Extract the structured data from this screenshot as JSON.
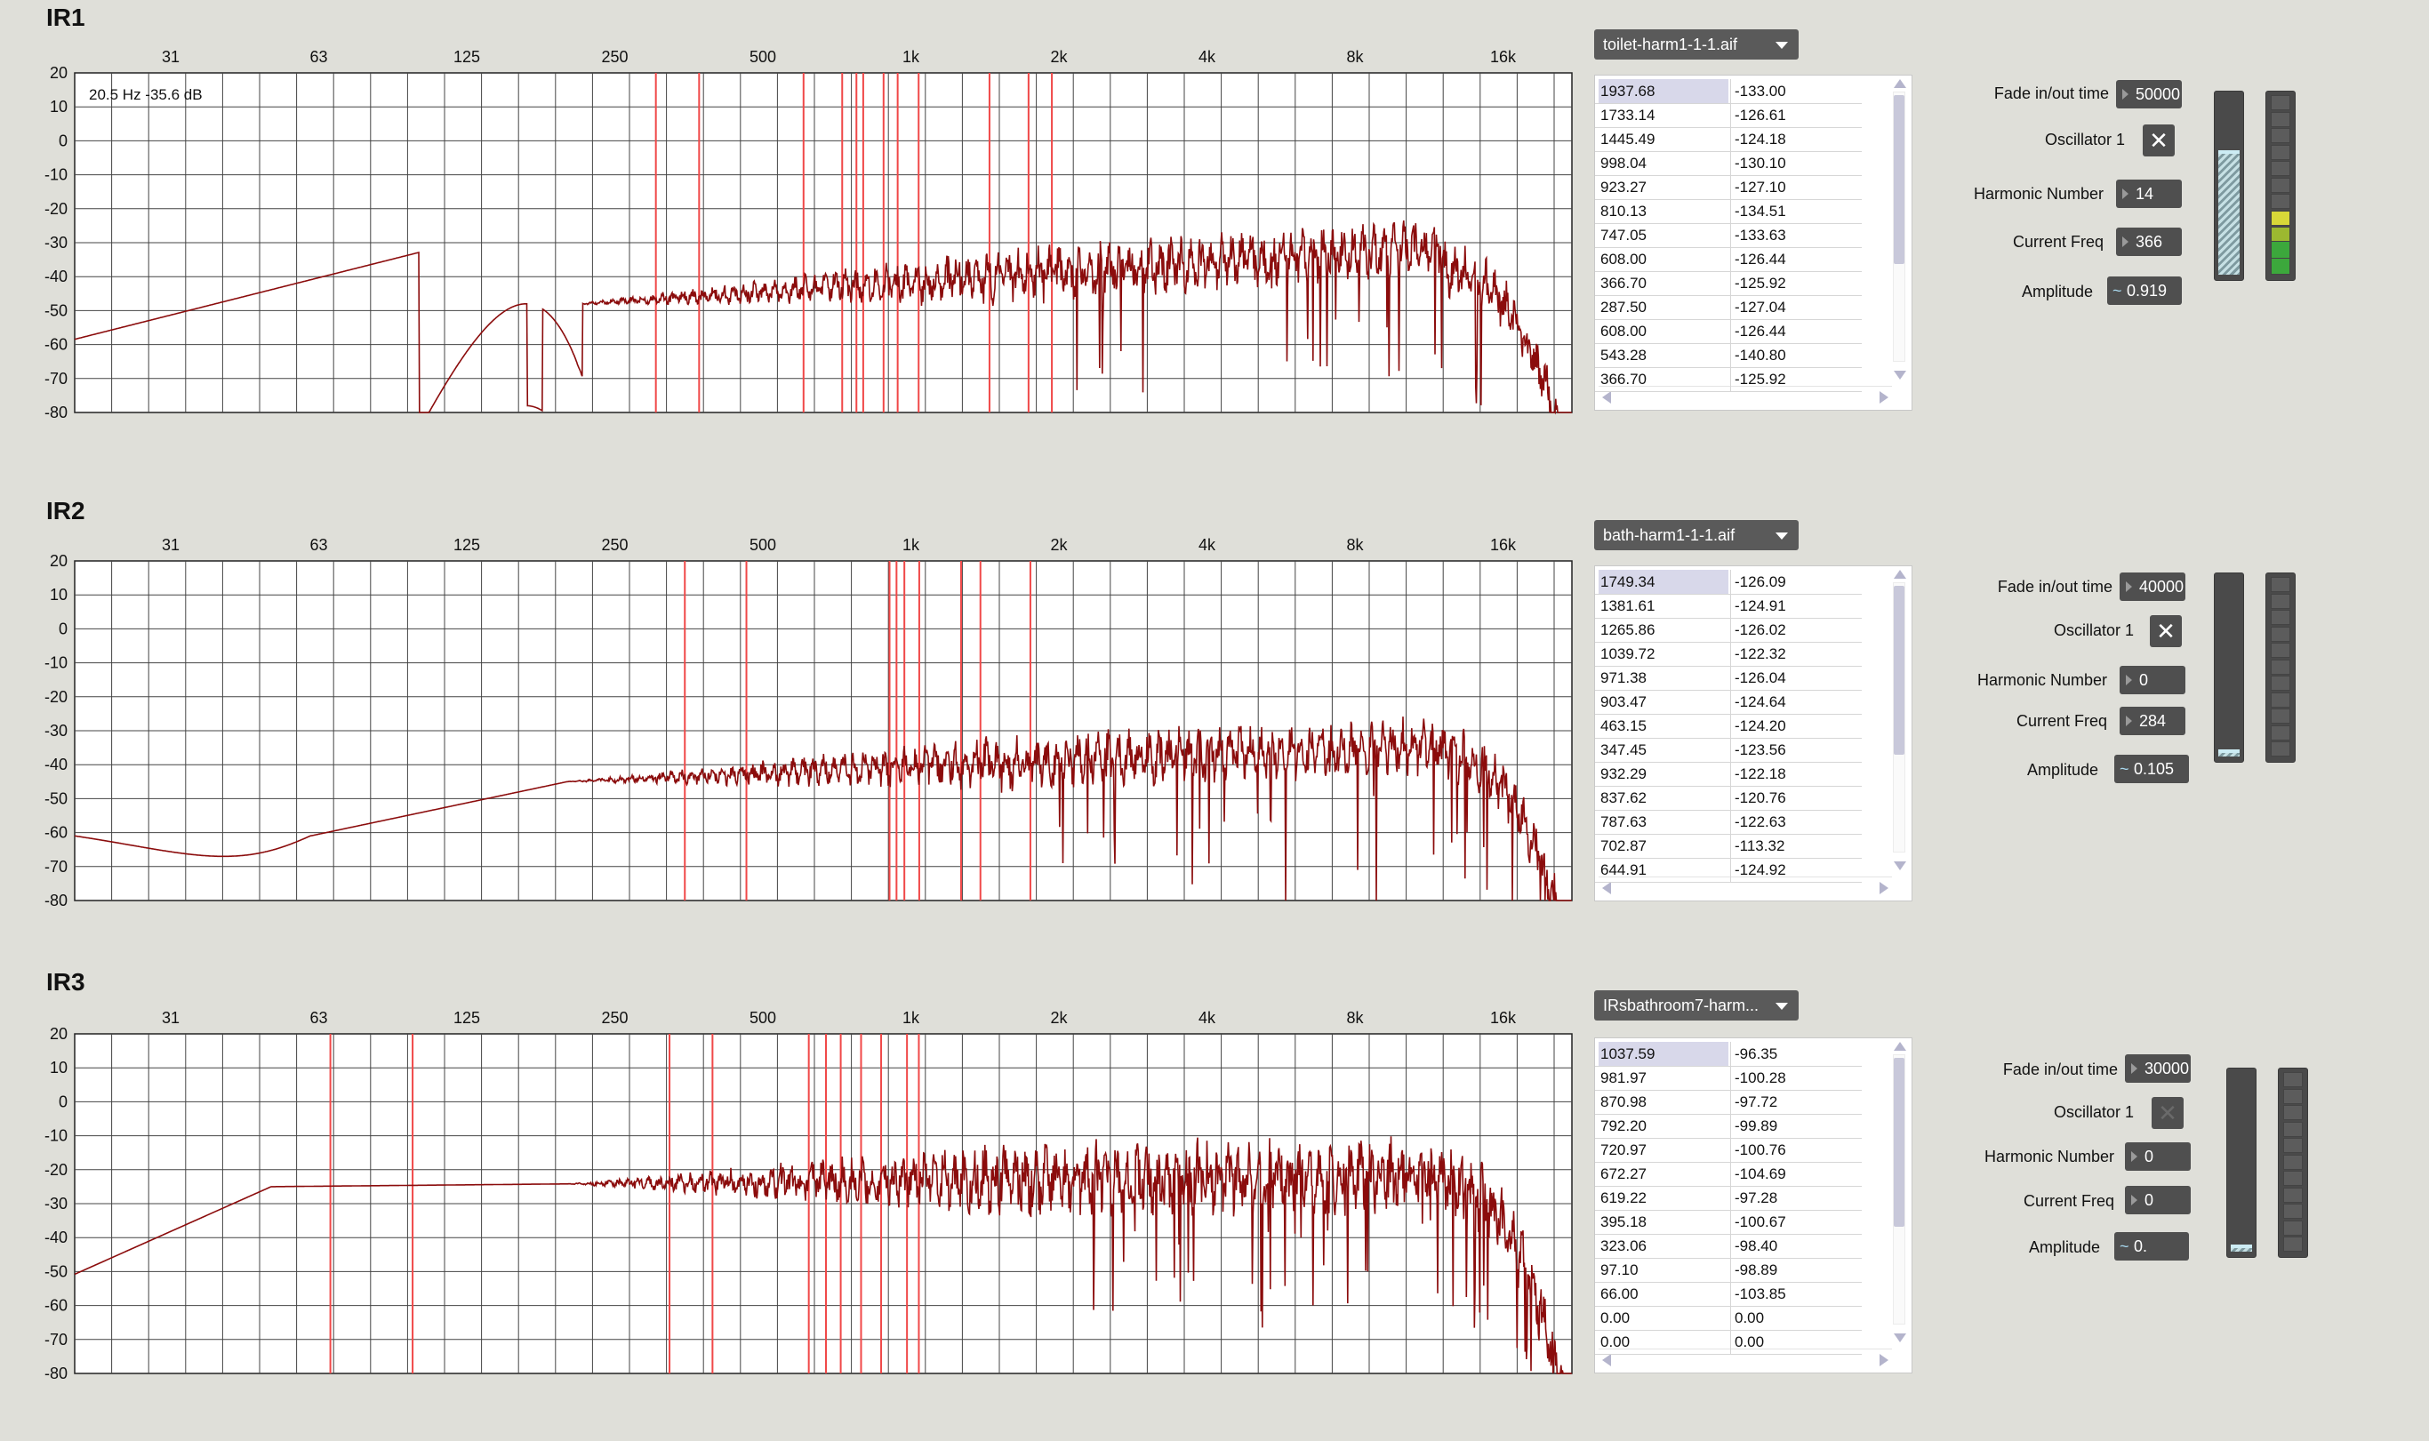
{
  "axes": {
    "freq_labels": [
      "31",
      "63",
      "125",
      "250",
      "500",
      "1k",
      "2k",
      "4k",
      "8k",
      "16k"
    ],
    "db_labels": [
      "20",
      "10",
      "0",
      "-10",
      "-20",
      "-30",
      "-40",
      "-50",
      "-60",
      "-70",
      "-80"
    ]
  },
  "colors": {
    "trace": "#8b0c0c",
    "marker": "#f04848",
    "grid": "#333333"
  },
  "panels": [
    {
      "title": "IR1",
      "readout": "20.5 Hz -35.6 dB",
      "file": "toilet-harm1-1-1.aif",
      "markers_hz": [
        303,
        371,
        605,
        725,
        775,
        800,
        880,
        940,
        1037,
        1445,
        1735,
        1935
      ],
      "list": [
        [
          "1937.68",
          "-133.00"
        ],
        [
          "1733.14",
          "-126.61"
        ],
        [
          "1445.49",
          "-124.18"
        ],
        [
          "998.04",
          "-130.10"
        ],
        [
          "923.27",
          "-127.10"
        ],
        [
          "810.13",
          "-134.51"
        ],
        [
          "747.05",
          "-133.63"
        ],
        [
          "608.00",
          "-126.44"
        ],
        [
          "366.70",
          "-125.92"
        ],
        [
          "287.50",
          "-127.04"
        ],
        [
          "608.00",
          "-126.44"
        ],
        [
          "543.28",
          "-140.80"
        ],
        [
          "366.70",
          "-125.92"
        ]
      ],
      "fade_label": "Fade in/out time",
      "fade_value": "50000",
      "osc_label": "Oscillator 1",
      "osc_on": true,
      "harm_label": "Harmonic Number",
      "harm_value": "14",
      "freq_label": "Current Freq",
      "freq_value": "366",
      "amp_label": "Amplitude",
      "amp_value": "0.919",
      "slider_level": 0.68,
      "meter_lit": [
        "green",
        "green",
        "olive",
        "yellow"
      ]
    },
    {
      "title": "IR2",
      "readout": "",
      "file": "bath-harm1-1-1.aif",
      "markers_hz": [
        347,
        463,
        905,
        935,
        970,
        1040,
        1265,
        1385,
        1750
      ],
      "list": [
        [
          "1749.34",
          "-126.09"
        ],
        [
          "1381.61",
          "-124.91"
        ],
        [
          "1265.86",
          "-126.02"
        ],
        [
          "1039.72",
          "-122.32"
        ],
        [
          "971.38",
          "-126.04"
        ],
        [
          "903.47",
          "-124.64"
        ],
        [
          "463.15",
          "-124.20"
        ],
        [
          "347.45",
          "-123.56"
        ],
        [
          "932.29",
          "-122.18"
        ],
        [
          "837.62",
          "-120.76"
        ],
        [
          "787.63",
          "-122.63"
        ],
        [
          "702.87",
          "-113.32"
        ],
        [
          "644.91",
          "-124.92"
        ]
      ],
      "fade_label": "Fade in/out time",
      "fade_value": "40000",
      "osc_label": "Oscillator 1",
      "osc_on": true,
      "harm_label": "Harmonic Number",
      "harm_value": "0",
      "freq_label": "Current Freq",
      "freq_value": "284",
      "amp_label": "Amplitude",
      "amp_value": "0.105",
      "slider_level": 0.0,
      "meter_lit": []
    },
    {
      "title": "IR3",
      "readout": "",
      "file": "IRsbathroom7-harm...",
      "markers_hz": [
        66,
        97,
        323,
        395,
        620,
        672,
        720,
        792,
        870,
        982,
        1038
      ],
      "list": [
        [
          "1037.59",
          "-96.35"
        ],
        [
          "981.97",
          "-100.28"
        ],
        [
          "870.98",
          "-97.72"
        ],
        [
          "792.20",
          "-99.89"
        ],
        [
          "720.97",
          "-100.76"
        ],
        [
          "672.27",
          "-104.69"
        ],
        [
          "619.22",
          "-97.28"
        ],
        [
          "395.18",
          "-100.67"
        ],
        [
          "323.06",
          "-98.40"
        ],
        [
          "97.10",
          "-98.89"
        ],
        [
          "66.00",
          "-103.85"
        ],
        [
          "0.00",
          "0.00"
        ],
        [
          "0.00",
          "0.00"
        ]
      ],
      "fade_label": "Fade in/out time",
      "fade_value": "30000",
      "osc_label": "Oscillator 1",
      "osc_on": false,
      "harm_label": "Harmonic Number",
      "harm_value": "0",
      "freq_label": "Current Freq",
      "freq_value": "0",
      "amp_label": "Amplitude",
      "amp_value": "0.",
      "slider_level": 0.0,
      "meter_lit": []
    }
  ]
}
